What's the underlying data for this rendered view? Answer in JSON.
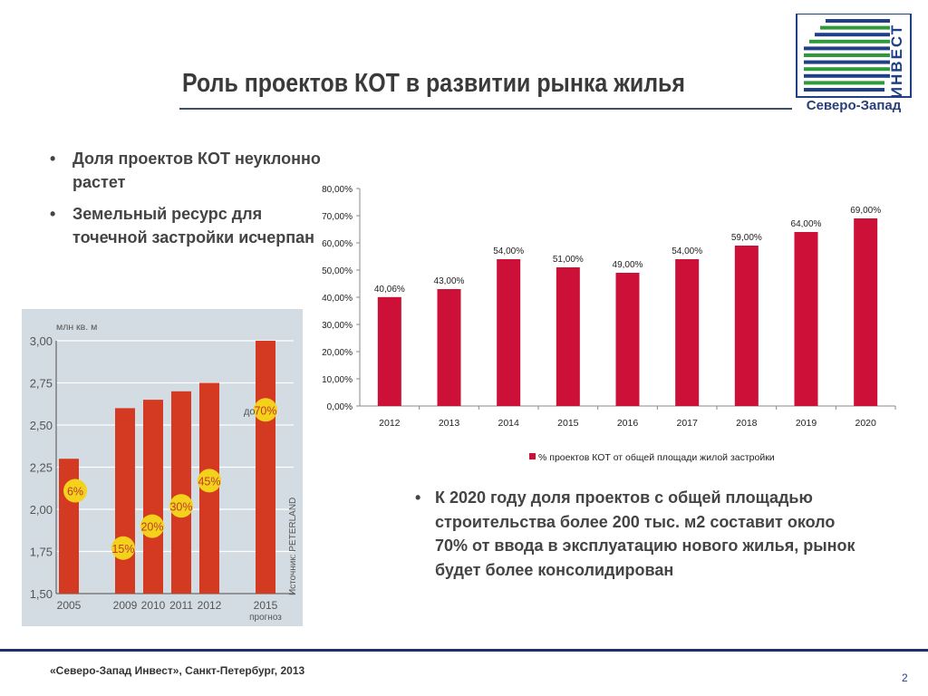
{
  "slide": {
    "title": "Роль проектов КОТ в развитии рынка жилья",
    "bullets": [
      "Доля проектов КОТ неуклонно растет",
      "Земельный ресурс для точечной застройки исчерпан"
    ],
    "bottom_bullet": "К 2020 году доля проектов с общей площадью строительства более 200 тыс. м2 составит около 70% от ввода в эксплуатацию нового жилья, рынок будет более консолидирован",
    "footer": "«Северо-Запад Инвест», Санкт-Петербург, 2013",
    "page_number": "2",
    "bullet_glyph": "•"
  },
  "logo": {
    "vertical_text": "ИНВЕСТ",
    "bottom_text": "Северо-Запад",
    "colors": {
      "blue": "#1f3f86",
      "green": "#2f9a3a"
    }
  },
  "chart_data": [
    {
      "type": "bar",
      "categories": [
        "2012",
        "2013",
        "2014",
        "2015",
        "2016",
        "2017",
        "2018",
        "2019",
        "2020"
      ],
      "series": [
        {
          "name": "% проектов КОТ от общей площади жилой застройки",
          "values": [
            40.06,
            43.0,
            54.0,
            51.0,
            49.0,
            54.0,
            59.0,
            64.0,
            69.0
          ]
        }
      ],
      "data_labels": [
        "40,06%",
        "43,00%",
        "54,00%",
        "51,00%",
        "49,00%",
        "54,00%",
        "59,00%",
        "64,00%",
        "69,00%"
      ],
      "ylim": [
        0,
        80
      ],
      "yticks": [
        "0,00%",
        "10,00%",
        "20,00%",
        "30,00%",
        "40,00%",
        "50,00%",
        "60,00%",
        "70,00%",
        "80,00%"
      ],
      "legend_position": "bottom",
      "color": "#cc1037"
    },
    {
      "type": "bar",
      "ylabel": "млн кв. м",
      "categories": [
        "2005",
        "2009",
        "2010",
        "2011",
        "2012",
        "2015"
      ],
      "category_sublabels": [
        "",
        "",
        "",
        "",
        "",
        "прогноз"
      ],
      "values": [
        2.3,
        2.6,
        2.65,
        2.7,
        2.75,
        3.0
      ],
      "ylim": [
        1.5,
        3.0
      ],
      "yticks": [
        "1,50",
        "1,75",
        "2,00",
        "2,25",
        "2,50",
        "2,75",
        "3,00"
      ],
      "badges": [
        "6%",
        "15%",
        "20%",
        "30%",
        "45%",
        "70%"
      ],
      "badge_prefix_last": "до",
      "source": "Источник: PETERLAND",
      "color": "#d43a22",
      "background": "#d3dce3"
    }
  ]
}
